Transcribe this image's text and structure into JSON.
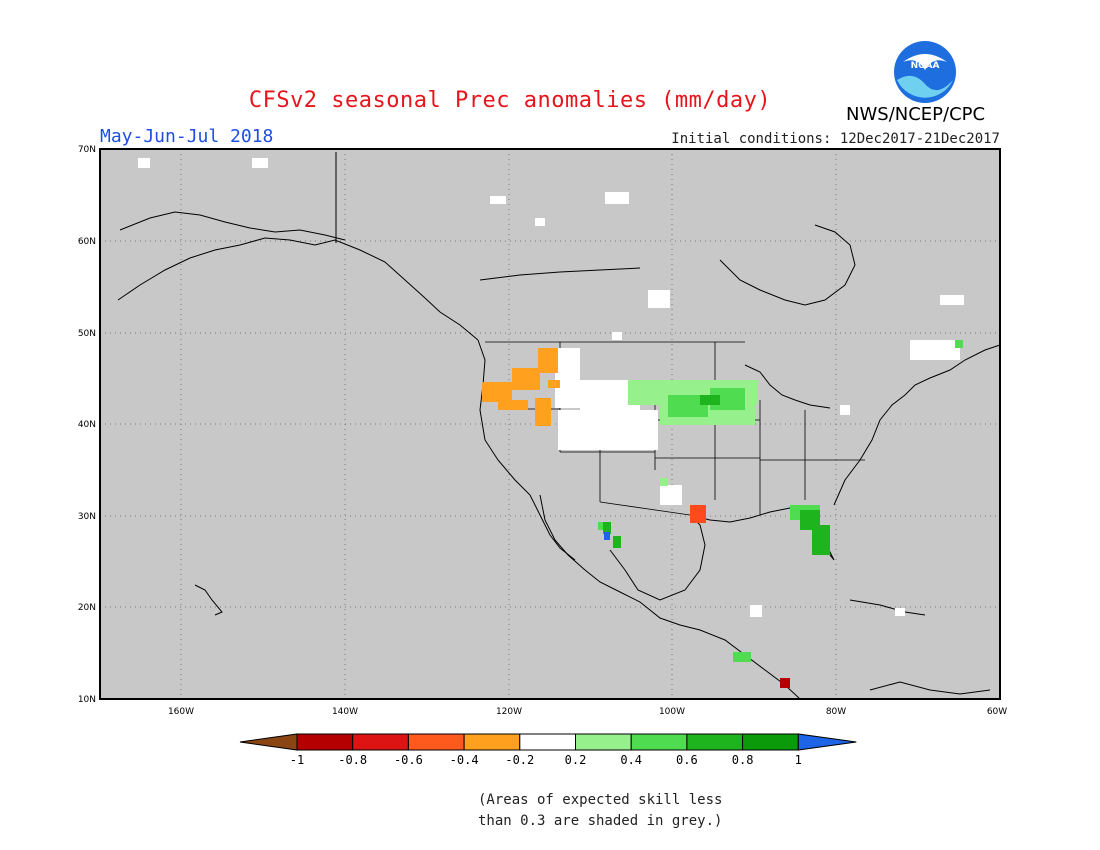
{
  "title": "CFSv2 seasonal Prec anomalies (mm/day)",
  "season": "May-Jun-Jul 2018",
  "initial_conditions": "Initial conditions: 12Dec2017-21Dec2017",
  "agency": "NWS/NCEP/CPC",
  "logo_text": "NOAA",
  "lat_labels": [
    "70N",
    "60N",
    "50N",
    "40N",
    "30N",
    "20N",
    "10N"
  ],
  "lon_labels": [
    "160W",
    "140W",
    "120W",
    "100W",
    "80W",
    "60W"
  ],
  "colorbar": {
    "labels": [
      "-1",
      "-0.8",
      "-0.6",
      "-0.4",
      "-0.2",
      "0.2",
      "0.4",
      "0.6",
      "0.8",
      "1"
    ],
    "colors": [
      "#8b4513",
      "#b40000",
      "#dc1414",
      "#ff5a1e",
      "#ffa01e",
      "#ffffff",
      "#96f08c",
      "#50dc50",
      "#1eb41e",
      "#0a9a0a",
      "#1e64e6"
    ]
  },
  "note_line1": "(Areas of expected skill less",
  "note_line2": "than 0.3 are shaded in grey.)",
  "colors": {
    "background_grey": "#c8c8c8",
    "title_red": "#e8141c",
    "season_blue": "#1f4fe0"
  }
}
